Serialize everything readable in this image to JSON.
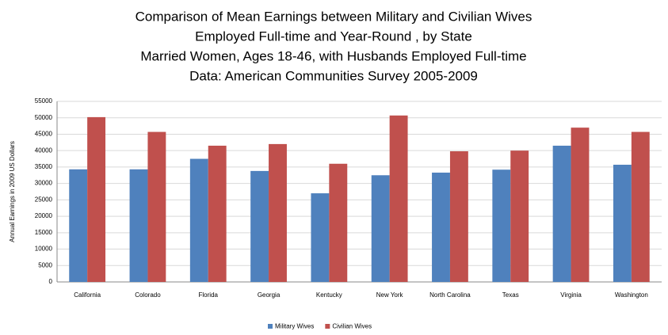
{
  "chart_data": {
    "type": "bar",
    "title_lines": [
      "Comparison of Mean Earnings between Military and Civilian Wives",
      "Employed Full-time and Year-Round , by State",
      "Married Women, Ages 18-46, with Husbands Employed Full-time",
      "Data: American Communities Survey 2005-2009"
    ],
    "y_label": "Annual Earnings in 2009 US Dollars",
    "categories": [
      "California",
      "Colorado",
      "Florida",
      "Georgia",
      "Kentucky",
      "New York",
      "North Carolina",
      "Texas",
      "Virginia",
      "Washington"
    ],
    "series": [
      {
        "name": "Military Wives",
        "color": "#4f81bd",
        "values": [
          34300,
          34300,
          37500,
          33800,
          27000,
          32500,
          33300,
          34200,
          41500,
          35700
        ]
      },
      {
        "name": "Civilian Wives",
        "color": "#c0504d",
        "values": [
          50200,
          45700,
          41500,
          42000,
          36000,
          50700,
          39800,
          40000,
          47000,
          45700
        ]
      }
    ],
    "ylim": [
      0,
      55000
    ],
    "yticks": [
      0,
      5000,
      10000,
      15000,
      20000,
      25000,
      30000,
      35000,
      40000,
      45000,
      50000,
      55000
    ],
    "grid": true,
    "legend": "bottom"
  }
}
